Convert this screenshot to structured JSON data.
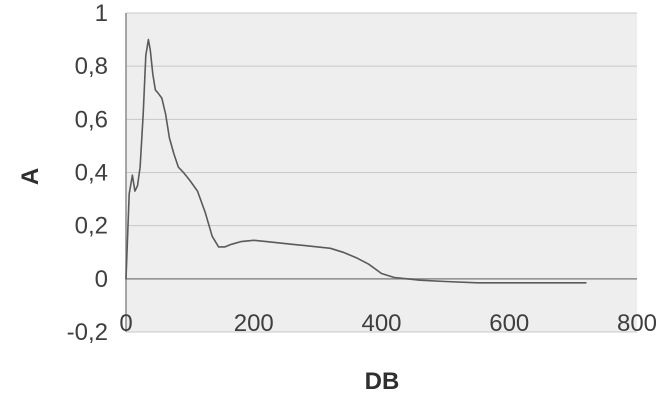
{
  "chart_data": {
    "type": "line",
    "title": "",
    "xlabel": "DB",
    "ylabel": "A",
    "xlim": [
      0,
      800
    ],
    "ylim": [
      -0.2,
      1
    ],
    "x_ticks": [
      0,
      200,
      400,
      600,
      800
    ],
    "x_tick_labels": [
      "0",
      "200",
      "400",
      "600",
      "800"
    ],
    "y_ticks": [
      -0.2,
      0,
      0.2,
      0.4,
      0.6,
      0.8,
      1
    ],
    "y_tick_labels": [
      "-0,2",
      "0",
      "0,2",
      "0,4",
      "0,6",
      "0,8",
      "1"
    ],
    "grid": "horizontal",
    "legend": "none",
    "colors": {
      "plot_background": "#eeeeee",
      "line": "#5a5a5a",
      "gridline": "#c8c8c8",
      "axis": "#8a8a8a"
    },
    "series": [
      {
        "x": [
          0,
          5,
          10,
          14,
          18,
          22,
          27,
          31,
          35,
          38,
          42,
          46,
          50,
          56,
          62,
          68,
          75,
          82,
          90,
          100,
          112,
          124,
          135,
          145,
          155,
          165,
          180,
          200,
          220,
          240,
          260,
          280,
          300,
          320,
          340,
          360,
          380,
          400,
          420,
          440,
          460,
          500,
          550,
          600,
          650,
          700,
          720
        ],
        "y": [
          0,
          0.32,
          0.39,
          0.33,
          0.35,
          0.42,
          0.62,
          0.84,
          0.9,
          0.86,
          0.77,
          0.71,
          0.7,
          0.68,
          0.62,
          0.53,
          0.47,
          0.42,
          0.4,
          0.37,
          0.33,
          0.25,
          0.16,
          0.12,
          0.12,
          0.13,
          0.14,
          0.145,
          0.14,
          0.135,
          0.13,
          0.125,
          0.12,
          0.115,
          0.1,
          0.08,
          0.055,
          0.02,
          0.005,
          0.0,
          -0.005,
          -0.01,
          -0.015,
          -0.015,
          -0.015,
          -0.015,
          -0.015
        ]
      }
    ]
  }
}
